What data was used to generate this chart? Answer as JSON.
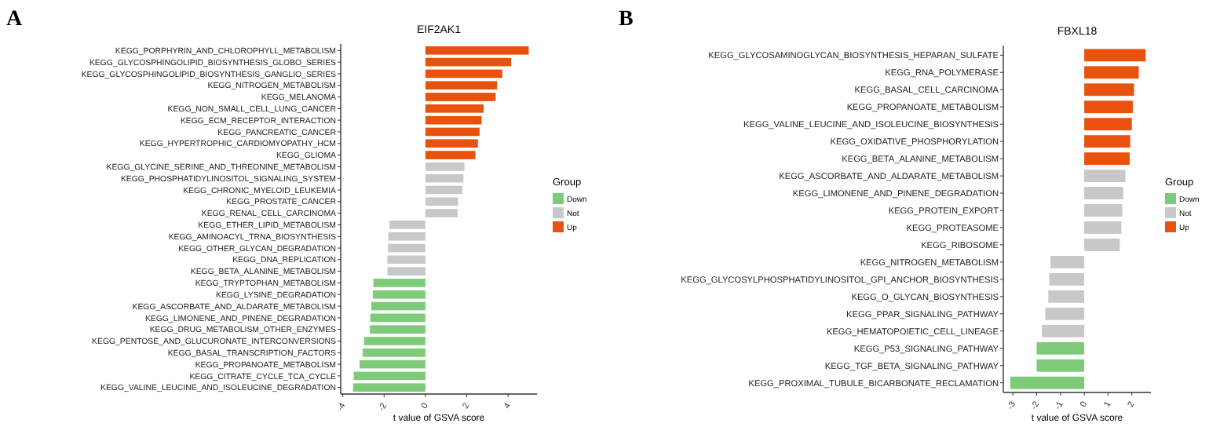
{
  "chart_data": [
    {
      "type": "bar",
      "orientation": "horizontal",
      "title": "EIF2AK1",
      "xlabel": "t value of GSVA score",
      "legend_title": "Group",
      "legend": "right",
      "annotations": [
        "A"
      ],
      "categories": [
        "KEGG_PORPHYRIN_AND_CHLOROPHYLL_METABOLISM",
        "KEGG_GLYCOSPHINGOLIPID_BIOSYNTHESIS_GLOBO_SERIES",
        "KEGG_GLYCOSPHINGOLIPID_BIOSYNTHESIS_GANGLIO_SERIES",
        "KEGG_NITROGEN_METABOLISM",
        "KEGG_MELANOMA",
        "KEGG_NON_SMALL_CELL_LUNG_CANCER",
        "KEGG_ECM_RECEPTOR_INTERACTION",
        "KEGG_PANCREATIC_CANCER",
        "KEGG_HYPERTROPHIC_CARDIOMYOPATHY_HCM",
        "KEGG_GLIOMA",
        "KEGG_GLYCINE_SERINE_AND_THREONINE_METABOLISM",
        "KEGG_PHOSPHATIDYLINOSITOL_SIGNALING_SYSTEM",
        "KEGG_CHRONIC_MYELOID_LEUKEMIA",
        "KEGG_PROSTATE_CANCER",
        "KEGG_RENAL_CELL_CARCINOMA",
        "KEGG_ETHER_LIPID_METABOLISM",
        "KEGG_AMINOACYL_TRNA_BIOSYNTHESIS",
        "KEGG_OTHER_GLYCAN_DEGRADATION",
        "KEGG_DNA_REPLICATION",
        "KEGG_BETA_ALANINE_METABOLISM",
        "KEGG_TRYPTOPHAN_METABOLISM",
        "KEGG_LYSINE_DEGRADATION",
        "KEGG_ASCORBATE_AND_ALDARATE_METABOLISM",
        "KEGG_LIMONENE_AND_PINENE_DEGRADATION",
        "KEGG_DRUG_METABOLISM_OTHER_ENZYMES",
        "KEGG_PENTOSE_AND_GLUCURONATE_INTERCONVERSIONS",
        "KEGG_BASAL_TRANSCRIPTION_FACTORS",
        "KEGG_PROPANOATE_METABOLISM",
        "KEGG_CITRATE_CYCLE_TCA_CYCLE",
        "KEGG_VALINE_LEUCINE_AND_ISOLEUCINE_DEGRADATION"
      ],
      "series": [
        {
          "name": "Down",
          "color": "#7dcb78",
          "values": [
            null,
            null,
            null,
            null,
            null,
            null,
            null,
            null,
            null,
            null,
            null,
            null,
            null,
            null,
            null,
            null,
            null,
            null,
            null,
            null,
            -2.52,
            -2.54,
            -2.62,
            -2.67,
            -2.69,
            -2.97,
            -3.04,
            -3.19,
            -3.47,
            -3.5
          ]
        },
        {
          "name": "Not",
          "color": "#c8c8c8",
          "values": [
            null,
            null,
            null,
            null,
            null,
            null,
            null,
            null,
            null,
            null,
            1.89,
            1.84,
            1.79,
            1.58,
            1.56,
            -1.74,
            -1.79,
            -1.81,
            -1.84,
            -1.84,
            null,
            null,
            null,
            null,
            null,
            null,
            null,
            null,
            null,
            null
          ]
        },
        {
          "name": "Up",
          "color": "#e8520e",
          "values": [
            5.0,
            4.15,
            3.72,
            3.47,
            3.4,
            2.82,
            2.72,
            2.62,
            2.54,
            2.42,
            null,
            null,
            null,
            null,
            null,
            null,
            null,
            null,
            null,
            null,
            null,
            null,
            null,
            null,
            null,
            null,
            null,
            null,
            null,
            null
          ]
        }
      ],
      "xlim": [
        -4.1,
        5.4
      ],
      "xticks": [
        -4,
        -2,
        0,
        2,
        4
      ]
    },
    {
      "type": "bar",
      "orientation": "horizontal",
      "title": "FBXL18",
      "xlabel": "t value of GSVA score",
      "legend_title": "Group",
      "legend": "right",
      "annotations": [
        "B"
      ],
      "categories": [
        "KEGG_GLYCOSAMINOGLYCAN_BIOSYNTHESIS_HEPARAN_SULFATE",
        "KEGG_RNA_POLYMERASE",
        "KEGG_BASAL_CELL_CARCINOMA",
        "KEGG_PROPANOATE_METABOLISM",
        "KEGG_VALINE_LEUCINE_AND_ISOLEUCINE_BIOSYNTHESIS",
        "KEGG_OXIDATIVE_PHOSPHORYLATION",
        "KEGG_BETA_ALANINE_METABOLISM",
        "KEGG_ASCORBATE_AND_ALDARATE_METABOLISM",
        "KEGG_LIMONENE_AND_PINENE_DEGRADATION",
        "KEGG_PROTEIN_EXPORT",
        "KEGG_PROTEASOME",
        "KEGG_RIBOSOME",
        "KEGG_NITROGEN_METABOLISM",
        "KEGG_GLYCOSYLPHOSPHATIDYLINOSITOL_GPI_ANCHOR_BIOSYNTHESIS",
        "KEGG_O_GLYCAN_BIOSYNTHESIS",
        "KEGG_PPAR_SIGNALING_PATHWAY",
        "KEGG_HEMATOPOIETIC_CELL_LINEAGE",
        "KEGG_P53_SIGNALING_PATHWAY",
        "KEGG_TGF_BETA_SIGNALING_PATHWAY",
        "KEGG_PROXIMAL_TUBULE_BICARBONATE_RECLAMATION"
      ],
      "series": [
        {
          "name": "Down",
          "color": "#7dcb78",
          "values": [
            null,
            null,
            null,
            null,
            null,
            null,
            null,
            null,
            null,
            null,
            null,
            null,
            null,
            null,
            null,
            null,
            null,
            -2.0,
            -2.0,
            -3.11
          ]
        },
        {
          "name": "Not",
          "color": "#c8c8c8",
          "values": [
            null,
            null,
            null,
            null,
            null,
            null,
            null,
            1.73,
            1.64,
            1.6,
            1.56,
            1.49,
            -1.42,
            -1.47,
            -1.51,
            -1.64,
            -1.78,
            null,
            null,
            null
          ]
        },
        {
          "name": "Up",
          "color": "#e8520e",
          "values": [
            2.58,
            2.29,
            2.09,
            2.04,
            2.0,
            1.93,
            1.91,
            null,
            null,
            null,
            null,
            null,
            null,
            null,
            null,
            null,
            null,
            null,
            null,
            null
          ]
        }
      ],
      "xlim": [
        -3.4,
        2.8
      ],
      "xticks": [
        -3,
        -2,
        -1,
        0,
        1,
        2
      ]
    }
  ]
}
